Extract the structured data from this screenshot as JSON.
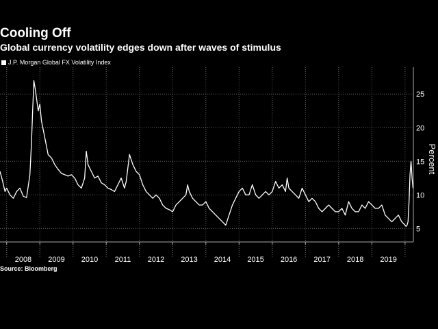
{
  "chart_data": {
    "type": "line",
    "title": "Cooling Off",
    "subtitle": "Global currency volatility edges down after waves of stimulus",
    "legend": [
      "J.P. Morgan Global FX Volatility Index"
    ],
    "ylabel": "Percent",
    "xlabel": "",
    "source": "Source: Bloomberg",
    "ylim": [
      3,
      29
    ],
    "xlim": [
      2007.8,
      2020.25
    ],
    "yticks": [
      5,
      10,
      15,
      20,
      25
    ],
    "xtick_labels": [
      "2008",
      "2009",
      "2010",
      "2011",
      "2012",
      "2013",
      "2014",
      "2015",
      "2016",
      "2017",
      "2018",
      "2019"
    ],
    "series": [
      {
        "name": "J.P. Morgan Global FX Volatility Index",
        "x": [
          2007.8,
          2007.88,
          2007.95,
          2008.0,
          2008.1,
          2008.2,
          2008.3,
          2008.4,
          2008.5,
          2008.6,
          2008.7,
          2008.75,
          2008.78,
          2008.82,
          2008.87,
          2008.95,
          2009.0,
          2009.05,
          2009.15,
          2009.25,
          2009.35,
          2009.45,
          2009.55,
          2009.65,
          2009.75,
          2009.85,
          2009.95,
          2010.05,
          2010.15,
          2010.25,
          2010.35,
          2010.4,
          2010.45,
          2010.55,
          2010.65,
          2010.75,
          2010.85,
          2010.95,
          2011.05,
          2011.15,
          2011.25,
          2011.35,
          2011.45,
          2011.55,
          2011.6,
          2011.65,
          2011.7,
          2011.8,
          2011.9,
          2012.0,
          2012.1,
          2012.2,
          2012.3,
          2012.4,
          2012.5,
          2012.6,
          2012.7,
          2012.8,
          2012.9,
          2013.0,
          2013.1,
          2013.2,
          2013.3,
          2013.4,
          2013.45,
          2013.5,
          2013.6,
          2013.7,
          2013.8,
          2013.9,
          2014.0,
          2014.1,
          2014.2,
          2014.3,
          2014.4,
          2014.5,
          2014.6,
          2014.7,
          2014.8,
          2014.9,
          2015.0,
          2015.1,
          2015.2,
          2015.3,
          2015.4,
          2015.5,
          2015.6,
          2015.7,
          2015.8,
          2015.9,
          2016.0,
          2016.1,
          2016.2,
          2016.3,
          2016.4,
          2016.45,
          2016.5,
          2016.6,
          2016.7,
          2016.8,
          2016.9,
          2017.0,
          2017.1,
          2017.2,
          2017.3,
          2017.4,
          2017.5,
          2017.6,
          2017.7,
          2017.8,
          2017.9,
          2018.0,
          2018.1,
          2018.2,
          2018.3,
          2018.4,
          2018.5,
          2018.6,
          2018.7,
          2018.8,
          2018.9,
          2019.0,
          2019.1,
          2019.2,
          2019.3,
          2019.4,
          2019.5,
          2019.6,
          2019.7,
          2019.8,
          2019.9,
          2020.0,
          2020.03,
          2020.06,
          2020.09,
          2020.12,
          2020.15,
          2020.18,
          2020.21,
          2020.24
        ],
        "values": [
          13.5,
          12.0,
          10.5,
          11.0,
          10.0,
          9.5,
          10.5,
          11.0,
          9.8,
          9.6,
          13.0,
          18.0,
          22.0,
          27.0,
          25.5,
          22.5,
          23.5,
          21.0,
          18.5,
          16.0,
          15.5,
          14.5,
          13.8,
          13.2,
          13.0,
          12.8,
          13.0,
          12.5,
          11.5,
          11.0,
          12.5,
          16.5,
          14.5,
          13.5,
          12.5,
          12.8,
          11.8,
          11.5,
          11.0,
          10.8,
          10.5,
          11.5,
          12.5,
          11.0,
          12.0,
          14.0,
          16.0,
          14.5,
          13.5,
          13.0,
          11.5,
          10.5,
          10.0,
          9.5,
          10.0,
          9.5,
          8.5,
          8.0,
          7.8,
          7.5,
          8.5,
          9.0,
          9.5,
          10.0,
          11.5,
          10.5,
          9.5,
          9.0,
          8.5,
          8.5,
          9.0,
          8.0,
          7.5,
          7.0,
          6.5,
          6.0,
          5.5,
          7.0,
          8.5,
          9.5,
          10.5,
          11.0,
          10.0,
          10.0,
          11.5,
          10.0,
          9.5,
          10.0,
          10.5,
          10.0,
          10.5,
          12.0,
          11.0,
          11.5,
          10.5,
          12.5,
          11.0,
          10.5,
          10.0,
          9.5,
          11.0,
          10.0,
          9.0,
          9.5,
          9.0,
          8.0,
          7.5,
          8.0,
          8.5,
          8.0,
          7.5,
          7.5,
          8.0,
          7.0,
          9.0,
          8.0,
          7.5,
          7.5,
          8.5,
          8.0,
          9.0,
          8.5,
          8.0,
          8.0,
          8.5,
          7.0,
          6.5,
          6.0,
          6.5,
          7.0,
          6.0,
          5.5,
          5.3,
          5.5,
          6.0,
          9.0,
          13.0,
          15.0,
          12.5,
          11.0
        ]
      }
    ]
  }
}
